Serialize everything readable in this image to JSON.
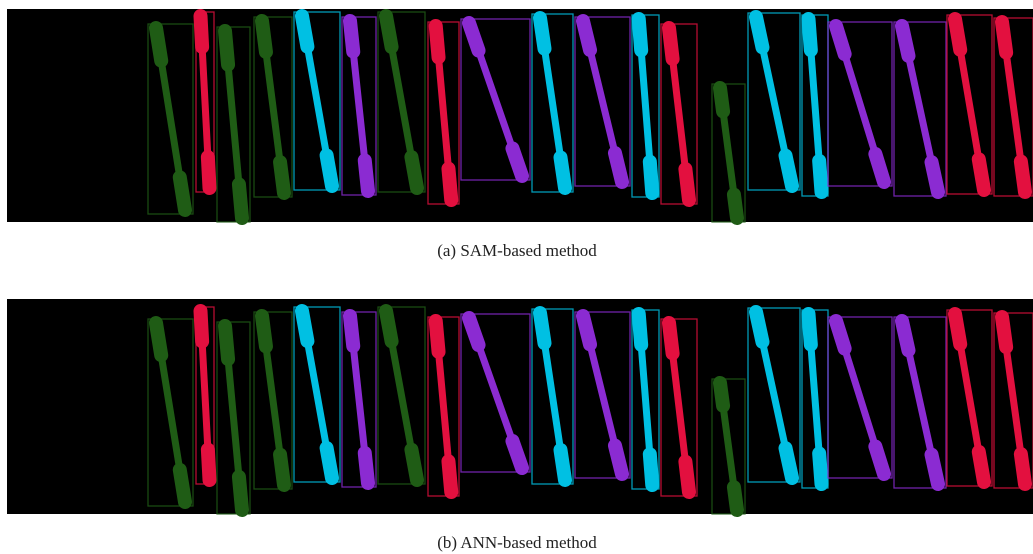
{
  "figure": {
    "panels": [
      {
        "caption": "(a) SAM-based method"
      },
      {
        "caption": "(b) ANN-based method"
      }
    ]
  }
}
